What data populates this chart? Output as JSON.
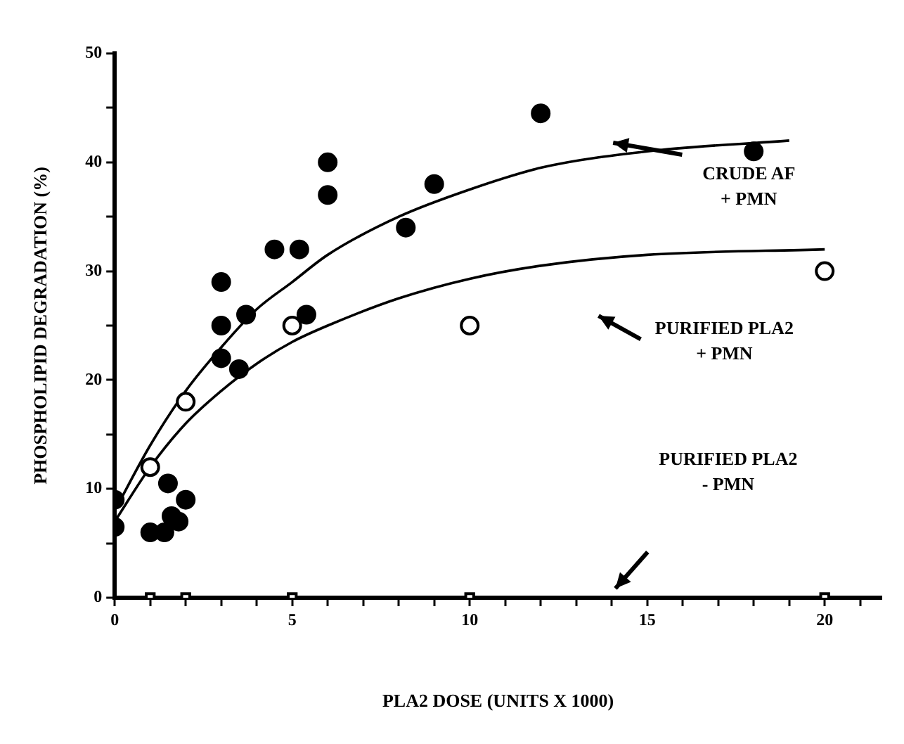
{
  "chart_data": {
    "type": "scatter",
    "xlabel": "PLA2 DOSE (UNITS X 1000)",
    "ylabel": "PHOSPHOLIPID DEGRADATION (%)",
    "xlim": [
      0,
      21.6
    ],
    "ylim": [
      0,
      50
    ],
    "xticks": [
      0,
      {
        "value": 1,
        "label": null
      },
      {
        "value": 2,
        "label": null
      },
      {
        "value": 3,
        "label": null
      },
      {
        "value": 4,
        "label": null
      },
      5,
      {
        "value": 6,
        "label": null
      },
      {
        "value": 7,
        "label": null
      },
      {
        "value": 8,
        "label": null
      },
      {
        "value": 9,
        "label": null
      },
      10,
      {
        "value": 11,
        "label": null
      },
      {
        "value": 12,
        "label": null
      },
      {
        "value": 13,
        "label": null
      },
      {
        "value": 14,
        "label": null
      },
      15,
      {
        "value": 16,
        "label": null
      },
      {
        "value": 17,
        "label": null
      },
      {
        "value": 18,
        "label": null
      },
      {
        "value": 19,
        "label": null
      },
      20,
      {
        "value": 21,
        "label": null
      }
    ],
    "yticks": [
      0,
      {
        "value": 5,
        "label": null
      },
      10,
      {
        "value": 15,
        "label": null
      },
      20,
      {
        "value": 25,
        "label": null
      },
      30,
      {
        "value": 35,
        "label": null
      },
      40,
      {
        "value": 45,
        "label": null
      },
      50
    ],
    "grid": false,
    "legend": false,
    "series": [
      {
        "marker": "circle",
        "color": "#000000",
        "x": [
          0,
          0,
          1,
          1.4,
          1.5,
          1.6,
          1.8,
          2,
          3,
          3,
          3,
          3.5,
          3.7,
          4.5,
          5.2,
          5.4,
          6,
          6,
          8.2,
          9,
          12,
          18
        ],
        "values": [
          9,
          6.5,
          6,
          6,
          10.5,
          7.5,
          7,
          9,
          29,
          25,
          22,
          21,
          26,
          32,
          32,
          26,
          40,
          37,
          34,
          38,
          44.5,
          41
        ]
      },
      {
        "type": "scatter",
        "marker": "circle",
        "color": "#000000",
        "x": [
          1,
          2,
          5,
          10,
          20
        ],
        "values": [
          12,
          18,
          25,
          25,
          30
        ]
      },
      {
        "type": "scatter",
        "marker": "square",
        "color": "#000000",
        "x": [
          1,
          2,
          5,
          10,
          20
        ],
        "values": [
          0,
          0,
          0,
          0,
          0
        ]
      },
      {
        "type": "line",
        "marker": "none",
        "color": "#000000",
        "x": [
          0,
          1,
          2,
          3,
          4,
          5,
          6,
          8,
          10,
          12,
          15,
          19
        ],
        "values": [
          8,
          14,
          19,
          23,
          26.5,
          29,
          31.5,
          35,
          37.5,
          39.5,
          41,
          42
        ]
      },
      {
        "type": "line",
        "marker": "none",
        "color": "#000000",
        "x": [
          0,
          1,
          2,
          3,
          4,
          5,
          6,
          8,
          10,
          12,
          15,
          20
        ],
        "values": [
          7,
          12,
          16,
          19,
          21.5,
          23.5,
          25,
          27.5,
          29.3,
          30.5,
          31.5,
          32
        ]
      }
    ],
    "annotations": [
      "CRUDE AF\n+ PMN",
      "PURIFIED PLA2\n+ PMN",
      "PURIFIED PLA2\n- PMN"
    ]
  }
}
